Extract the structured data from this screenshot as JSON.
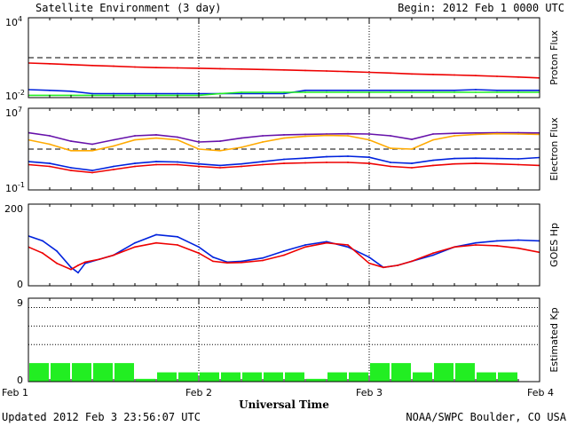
{
  "header": {
    "title": "Satellite Environment (3 day)",
    "begin": "Begin:  2012 Feb 1 0000 UTC"
  },
  "footer": {
    "updated": "Updated 2012 Feb  3 23:56:07 UTC",
    "credit": "NOAA/SWPC Boulder, CO USA"
  },
  "x_axis": {
    "title": "Universal Time",
    "ticks": [
      "Feb 1",
      "Feb 2",
      "Feb 3",
      "Feb 4"
    ]
  },
  "colors": {
    "red": "#ee0000",
    "blue": "#0022dd",
    "green": "#22ee22",
    "purple": "#6611aa",
    "orange": "#ffaa00"
  },
  "chart_data": [
    {
      "type": "line",
      "panel": "proton",
      "ylabel": "Proton Flux",
      "yscale": "log",
      "ylim": [
        0.01,
        10000
      ],
      "ytick_labels": {
        "base_top": "10",
        "exp_top": "4",
        "base_bottom": "10",
        "exp_bottom": "-2"
      },
      "threshold": 10,
      "x": [
        0,
        3,
        6,
        9,
        12,
        15,
        18,
        21,
        24,
        27,
        30,
        33,
        36,
        39,
        42,
        45,
        48,
        51,
        54,
        57,
        60,
        63,
        66,
        69,
        72
      ],
      "series": [
        {
          "color": "red",
          "values": [
            4,
            3.5,
            3,
            2.6,
            2.3,
            2,
            1.8,
            1.7,
            1.6,
            1.5,
            1.4,
            1.3,
            1.2,
            1.1,
            1.0,
            0.9,
            0.8,
            0.7,
            0.6,
            0.55,
            0.5,
            0.45,
            0.4,
            0.35,
            0.3
          ]
        },
        {
          "color": "blue",
          "values": [
            0.04,
            0.035,
            0.03,
            0.02,
            0.02,
            0.02,
            0.02,
            0.02,
            0.02,
            0.02,
            0.02,
            0.02,
            0.02,
            0.035,
            0.035,
            0.035,
            0.035,
            0.035,
            0.035,
            0.035,
            0.035,
            0.04,
            0.035,
            0.035,
            0.035
          ]
        },
        {
          "color": "green",
          "values": [
            0.015,
            0.015,
            0.015,
            0.015,
            0.015,
            0.015,
            0.015,
            0.015,
            0.015,
            0.02,
            0.025,
            0.025,
            0.025,
            0.025,
            0.025,
            0.025,
            0.025,
            0.025,
            0.025,
            0.025,
            0.025,
            0.025,
            0.025,
            0.025,
            0.025
          ]
        }
      ]
    },
    {
      "type": "line",
      "panel": "electron",
      "ylabel": "Electron Flux",
      "yscale": "log",
      "ylim": [
        0.1,
        10000000
      ],
      "ytick_labels": {
        "base_top": "10",
        "exp_top": "7",
        "base_bottom": "10",
        "exp_bottom": "-1"
      },
      "threshold": 1000,
      "x": [
        0,
        3,
        6,
        9,
        12,
        15,
        18,
        21,
        24,
        27,
        30,
        33,
        36,
        39,
        42,
        45,
        48,
        51,
        54,
        57,
        60,
        63,
        66,
        69,
        72
      ],
      "series": [
        {
          "color": "purple",
          "values": [
            40000,
            20000,
            6000,
            3000,
            8000,
            20000,
            25000,
            15000,
            5000,
            6000,
            12000,
            20000,
            25000,
            28000,
            30000,
            32000,
            30000,
            20000,
            9000,
            30000,
            35000,
            38000,
            40000,
            40000,
            38000
          ]
        },
        {
          "color": "orange",
          "values": [
            8000,
            3000,
            700,
            700,
            2000,
            8000,
            12000,
            8000,
            1000,
            700,
            1500,
            5000,
            12000,
            18000,
            22000,
            20000,
            8000,
            1200,
            1000,
            8000,
            20000,
            28000,
            32000,
            30000,
            28000
          ]
        },
        {
          "color": "blue",
          "values": [
            60,
            40,
            15,
            8,
            20,
            40,
            60,
            55,
            35,
            25,
            35,
            60,
            100,
            130,
            180,
            200,
            160,
            50,
            40,
            80,
            120,
            130,
            120,
            110,
            150
          ]
        },
        {
          "color": "red",
          "values": [
            30,
            20,
            8,
            5,
            10,
            20,
            30,
            30,
            20,
            15,
            20,
            30,
            40,
            45,
            50,
            50,
            40,
            20,
            15,
            25,
            35,
            40,
            35,
            30,
            25
          ]
        }
      ]
    },
    {
      "type": "line",
      "panel": "hp",
      "ylabel": "GOES Hp",
      "ylim": [
        0,
        200
      ],
      "yticks": [
        0,
        200
      ],
      "x": [
        0,
        2,
        4,
        6,
        7,
        8,
        10,
        12,
        15,
        18,
        21,
        24,
        26,
        28,
        30,
        33,
        36,
        39,
        42,
        45,
        48,
        50,
        52,
        54,
        57,
        60,
        63,
        66,
        69,
        72
      ],
      "series": [
        {
          "color": "blue",
          "values": [
            122,
            110,
            85,
            45,
            32,
            55,
            65,
            75,
            105,
            125,
            120,
            95,
            70,
            58,
            60,
            68,
            85,
            100,
            108,
            95,
            70,
            45,
            50,
            60,
            75,
            95,
            105,
            110,
            112,
            110
          ]
        },
        {
          "color": "red",
          "values": [
            95,
            80,
            55,
            40,
            50,
            58,
            65,
            75,
            95,
            105,
            100,
            80,
            60,
            56,
            57,
            62,
            75,
            95,
            105,
            100,
            55,
            45,
            50,
            60,
            80,
            95,
            100,
            98,
            92,
            82
          ]
        }
      ]
    },
    {
      "type": "bar",
      "panel": "kp",
      "ylabel": "Estimated Kp",
      "ylim": [
        0,
        9
      ],
      "yticks": [
        0,
        9
      ],
      "bar_width_hours": 3,
      "values": [
        2,
        2,
        2,
        2,
        2,
        0.3,
        1,
        1,
        1,
        1,
        1,
        1,
        1,
        0.3,
        1,
        1,
        2,
        2,
        1,
        2,
        2,
        1,
        1,
        0
      ]
    }
  ]
}
